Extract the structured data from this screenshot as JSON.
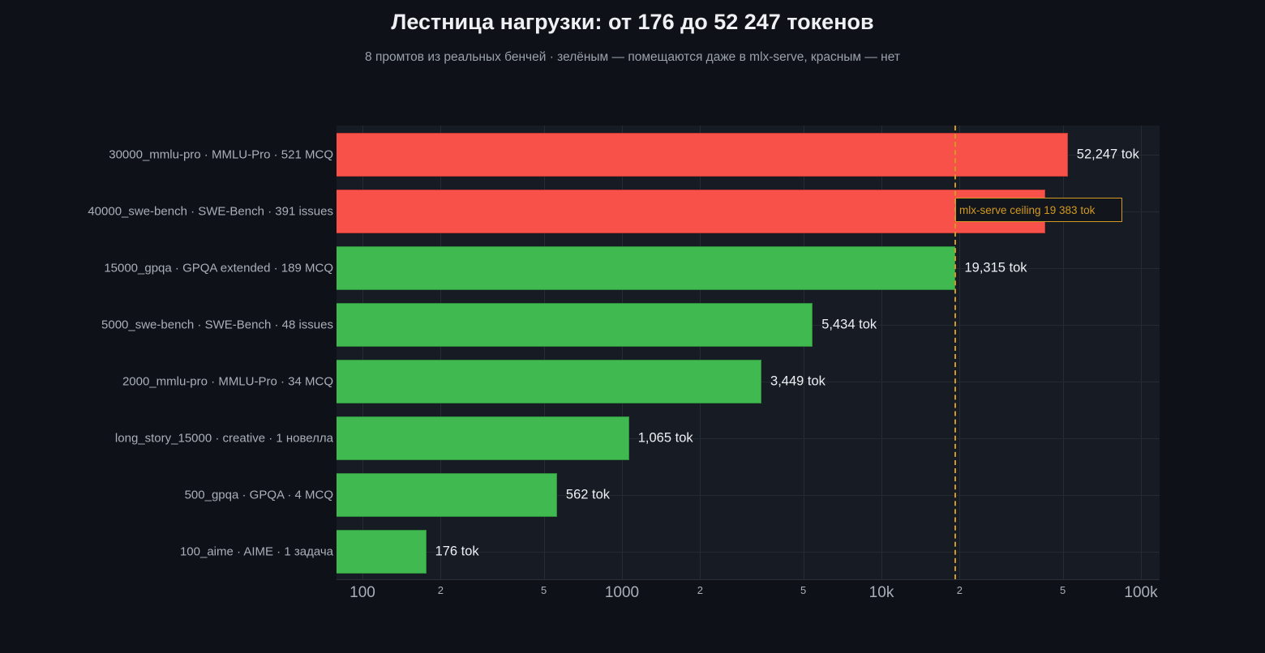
{
  "header": {
    "title": "Лестница нагрузки: от 176 до 52 247 токенов",
    "subtitle": "8 промтов из реальных бенчей · зелёным — помещаются даже в mlx-serve, красным — нет"
  },
  "colors": {
    "page_bg": "#0e1117",
    "plot_bg": "#171b23",
    "fits": "#3fb950",
    "exceeds": "#f85149",
    "ceiling": "#d29922"
  },
  "axis": {
    "ticks": [
      {
        "label": "100",
        "value": 100,
        "major": true
      },
      {
        "label": "2",
        "value": 200,
        "major": false
      },
      {
        "label": "5",
        "value": 500,
        "major": false
      },
      {
        "label": "1000",
        "value": 1000,
        "major": true
      },
      {
        "label": "2",
        "value": 2000,
        "major": false
      },
      {
        "label": "5",
        "value": 5000,
        "major": false
      },
      {
        "label": "10k",
        "value": 10000,
        "major": true
      },
      {
        "label": "2",
        "value": 20000,
        "major": false
      },
      {
        "label": "5",
        "value": 50000,
        "major": false
      },
      {
        "label": "100k",
        "value": 100000,
        "major": true
      }
    ]
  },
  "ceiling": {
    "label": "mlx-serve ceiling  19 383 tok",
    "value": 19383
  },
  "chart_data": {
    "type": "bar",
    "orientation": "horizontal",
    "title": "Лестница нагрузки: от 176 до 52 247 токенов",
    "subtitle": "8 промтов из реальных бенчей · зелёным — помещаются даже в mlx-serve, красным — нет",
    "xlabel": "",
    "ylabel": "",
    "xscale": "log",
    "xlim": [
      85,
      120000
    ],
    "grid": true,
    "categories": [
      "30000_mmlu-pro · MMLU-Pro · 521 MCQ",
      "40000_swe-bench · SWE-Bench · 391 issues",
      "15000_gpqa · GPQA extended · 189 MCQ",
      "5000_swe-bench · SWE-Bench · 48 issues",
      "2000_mmlu-pro · MMLU-Pro · 34 MCQ",
      "long_story_15000 · creative · 1 новелла",
      "500_gpqa · GPQA · 4 MCQ",
      "100_aime · AIME · 1 задача"
    ],
    "values": [
      52247,
      42760,
      19315,
      5434,
      3449,
      1065,
      562,
      176
    ],
    "value_labels": [
      "52,247 tok",
      "",
      "19,315 tok",
      "5,434 tok",
      "3,449 tok",
      "1,065 tok",
      "562 tok",
      "176 tok"
    ],
    "status": [
      "exceeds",
      "exceeds",
      "fits",
      "fits",
      "fits",
      "fits",
      "fits",
      "fits"
    ],
    "reference_line": {
      "value": 19383,
      "label": "mlx-serve ceiling  19 383 tok",
      "style": "dashed",
      "color": "#d29922"
    },
    "notes": "Value for 40000_swe-bench is estimated from bar length (its label is hidden under the ceiling annotation)."
  }
}
